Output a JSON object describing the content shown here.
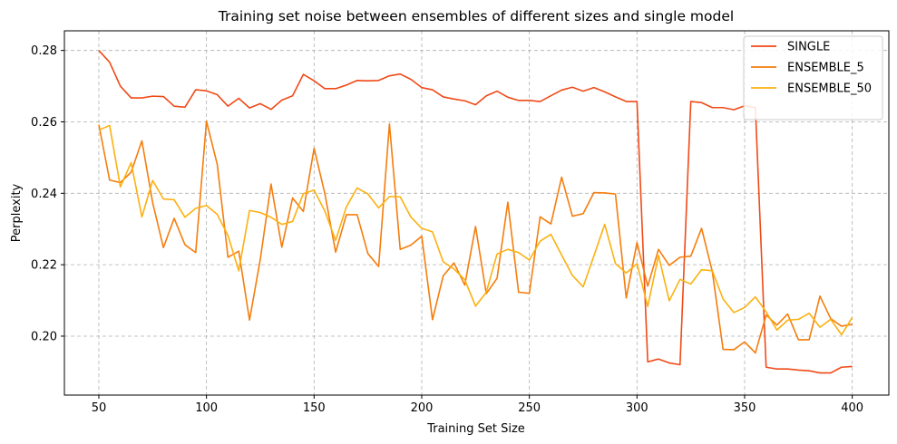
{
  "chart_data": {
    "type": "line",
    "title": "Training set noise between ensembles of different sizes and single model",
    "xlabel": "Training Set Size",
    "ylabel": "Perplexity",
    "xlim": [
      34,
      417
    ],
    "ylim": [
      0.1835,
      0.2855
    ],
    "xticks": [
      50,
      100,
      150,
      200,
      250,
      300,
      350,
      400
    ],
    "yticks": [
      0.2,
      0.22,
      0.24,
      0.26,
      0.28
    ],
    "ytick_labels": [
      "0.20",
      "0.22",
      "0.24",
      "0.26",
      "0.28"
    ],
    "grid": true,
    "legend_position": "top-right",
    "x": [
      50,
      55,
      60,
      65,
      70,
      75,
      80,
      85,
      90,
      95,
      100,
      105,
      110,
      115,
      120,
      125,
      130,
      135,
      140,
      145,
      150,
      155,
      160,
      165,
      170,
      175,
      180,
      185,
      190,
      195,
      200,
      205,
      210,
      215,
      220,
      225,
      230,
      235,
      240,
      245,
      250,
      255,
      260,
      265,
      270,
      275,
      280,
      285,
      290,
      295,
      300,
      305,
      310,
      315,
      320,
      325,
      330,
      335,
      340,
      345,
      350,
      355,
      360,
      365,
      370,
      375,
      380,
      385,
      390,
      395,
      400
    ],
    "series": [
      {
        "name": "SINGLE",
        "color": "#f04a17",
        "values": [
          0.28,
          0.2767,
          0.27,
          0.2667,
          0.2667,
          0.2672,
          0.2671,
          0.2644,
          0.2641,
          0.269,
          0.2687,
          0.2676,
          0.2644,
          0.2666,
          0.2639,
          0.2651,
          0.2635,
          0.2661,
          0.2673,
          0.2733,
          0.2715,
          0.2693,
          0.2693,
          0.2703,
          0.2716,
          0.2715,
          0.2716,
          0.2729,
          0.2734,
          0.2719,
          0.2696,
          0.269,
          0.267,
          0.2664,
          0.2659,
          0.2648,
          0.2673,
          0.2686,
          0.2669,
          0.266,
          0.266,
          0.2657,
          0.2673,
          0.2689,
          0.2697,
          0.2686,
          0.2696,
          0.2684,
          0.267,
          0.2657,
          0.2657,
          0.1928,
          0.1936,
          0.1925,
          0.192,
          0.2657,
          0.2654,
          0.264,
          0.264,
          0.2634,
          0.2645,
          0.264,
          0.1913,
          0.1908,
          0.1908,
          0.1905,
          0.1903,
          0.1897,
          0.1897,
          0.1913,
          0.1915
        ]
      },
      {
        "name": "ENSEMBLE_5",
        "color": "#f57d0d",
        "values": [
          0.2592,
          0.2437,
          0.243,
          0.2459,
          0.2547,
          0.2374,
          0.2248,
          0.233,
          0.2256,
          0.2234,
          0.2602,
          0.2481,
          0.2221,
          0.2238,
          0.2045,
          0.2215,
          0.2426,
          0.2249,
          0.2387,
          0.2349,
          0.2526,
          0.2399,
          0.2235,
          0.234,
          0.234,
          0.2231,
          0.2195,
          0.2594,
          0.2243,
          0.2255,
          0.228,
          0.2046,
          0.2169,
          0.2205,
          0.2143,
          0.2307,
          0.2119,
          0.2162,
          0.2375,
          0.2123,
          0.212,
          0.2334,
          0.2314,
          0.2445,
          0.2336,
          0.2343,
          0.2402,
          0.2401,
          0.2398,
          0.2107,
          0.2262,
          0.214,
          0.2243,
          0.2198,
          0.2221,
          0.2224,
          0.2302,
          0.2181,
          0.1963,
          0.1962,
          0.1984,
          0.1953,
          0.2059,
          0.2031,
          0.2062,
          0.199,
          0.199,
          0.2112,
          0.2049,
          0.2028,
          0.2033
        ]
      },
      {
        "name": "ENSEMBLE_50",
        "color": "#fbb110",
        "values": [
          0.2577,
          0.259,
          0.2418,
          0.2486,
          0.2334,
          0.2436,
          0.2384,
          0.2382,
          0.2333,
          0.2358,
          0.2366,
          0.2341,
          0.2282,
          0.2183,
          0.2352,
          0.2346,
          0.2333,
          0.2313,
          0.2321,
          0.2399,
          0.2409,
          0.235,
          0.2268,
          0.2362,
          0.2415,
          0.2398,
          0.2359,
          0.2391,
          0.239,
          0.2333,
          0.2302,
          0.2292,
          0.2208,
          0.2188,
          0.2158,
          0.2084,
          0.2123,
          0.223,
          0.2243,
          0.2234,
          0.2213,
          0.2266,
          0.2285,
          0.2227,
          0.217,
          0.2138,
          0.2225,
          0.2313,
          0.2203,
          0.2177,
          0.2203,
          0.2083,
          0.2226,
          0.2099,
          0.2159,
          0.2146,
          0.2186,
          0.2183,
          0.2104,
          0.2066,
          0.208,
          0.211,
          0.2068,
          0.2017,
          0.2045,
          0.2047,
          0.2064,
          0.2025,
          0.2047,
          0.2004,
          0.2052
        ]
      }
    ]
  }
}
